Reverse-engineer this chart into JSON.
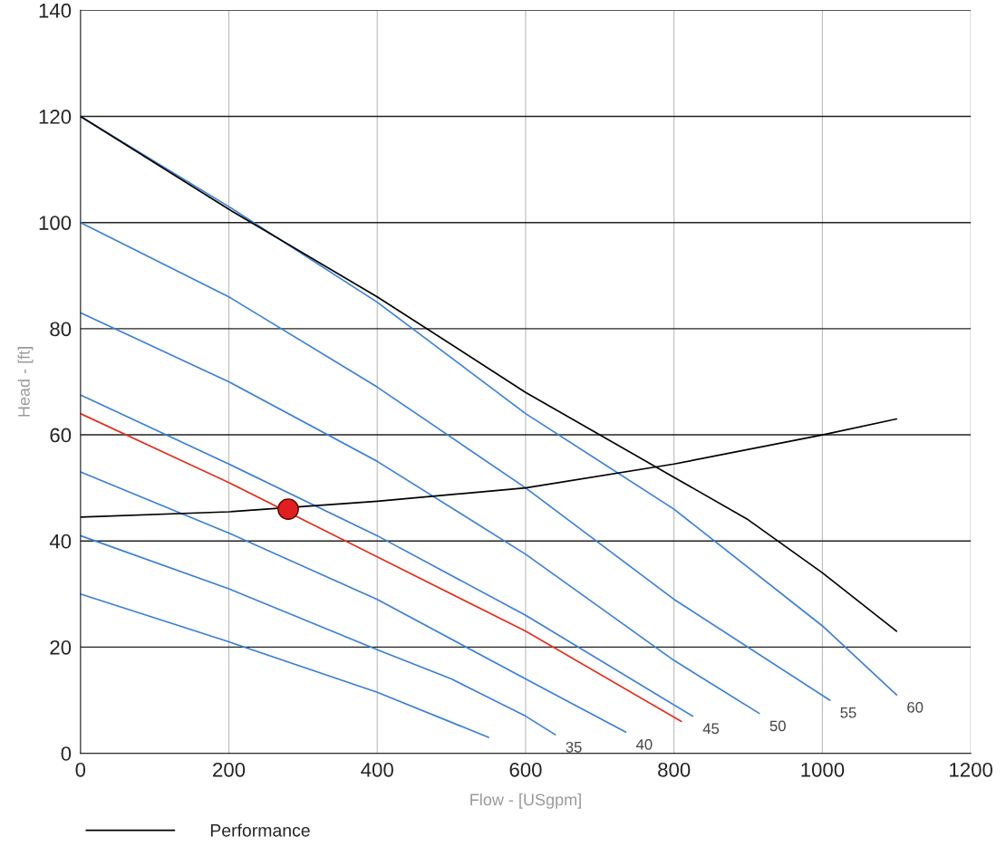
{
  "chart_data": {
    "type": "line",
    "xlabel": "Flow - [USgpm]",
    "ylabel": "Head - [ft]",
    "xlim": [
      0,
      1200
    ],
    "ylim": [
      0,
      140
    ],
    "xticks": [
      0,
      200,
      400,
      600,
      800,
      1000,
      1200
    ],
    "yticks": [
      0,
      20,
      40,
      60,
      80,
      100,
      120,
      140
    ],
    "grid": true,
    "legend": "bottom",
    "series": [
      {
        "color": "#3b7fd4",
        "x": [
          0,
          200,
          400,
          550
        ],
        "values": [
          30,
          21,
          11.5,
          3
        ]
      },
      {
        "name": "35",
        "color": "#3b7fd4",
        "x": [
          0,
          200,
          400,
          500,
          600,
          640
        ],
        "values": [
          41,
          31,
          19.5,
          14,
          7,
          3.5
        ]
      },
      {
        "name": "40",
        "color": "#3b7fd4",
        "x": [
          0,
          200,
          400,
          600,
          735
        ],
        "values": [
          53,
          41.5,
          29,
          14,
          4
        ]
      },
      {
        "color": "#e03020",
        "x": [
          0,
          200,
          400,
          600,
          810
        ],
        "values": [
          64,
          51,
          37,
          23,
          6
        ]
      },
      {
        "name": "45",
        "color": "#3b7fd4",
        "x": [
          0,
          200,
          400,
          600,
          825
        ],
        "values": [
          67.5,
          54.5,
          41,
          26,
          7
        ]
      },
      {
        "name": "50",
        "color": "#3b7fd4",
        "x": [
          0,
          200,
          400,
          600,
          800,
          915
        ],
        "values": [
          83,
          70,
          55,
          37.5,
          17.5,
          7.5
        ]
      },
      {
        "name": "55",
        "color": "#3b7fd4",
        "x": [
          0,
          200,
          400,
          600,
          800,
          1010
        ],
        "values": [
          100,
          86,
          69,
          50,
          29,
          10
        ]
      },
      {
        "name": "60",
        "color": "#3b7fd4",
        "x": [
          0,
          200,
          400,
          600,
          800,
          1000,
          1100
        ],
        "values": [
          120,
          103,
          85,
          64,
          46,
          24,
          11
        ]
      },
      {
        "name": "Performance",
        "color": "#000000",
        "x": [
          0,
          200,
          400,
          600,
          800,
          900,
          1000,
          1100
        ],
        "values": [
          120,
          102.5,
          86,
          68,
          52,
          44,
          34,
          23
        ]
      },
      {
        "color": "#000000",
        "x": [
          0,
          200,
          400,
          600,
          800,
          1000,
          1100
        ],
        "values": [
          44.5,
          45.5,
          47.5,
          50,
          54.5,
          60,
          63
        ]
      },
      {
        "type": "scatter",
        "marker": "circle",
        "color": "#e02020",
        "x": [
          280
        ],
        "values": [
          46
        ]
      }
    ]
  }
}
